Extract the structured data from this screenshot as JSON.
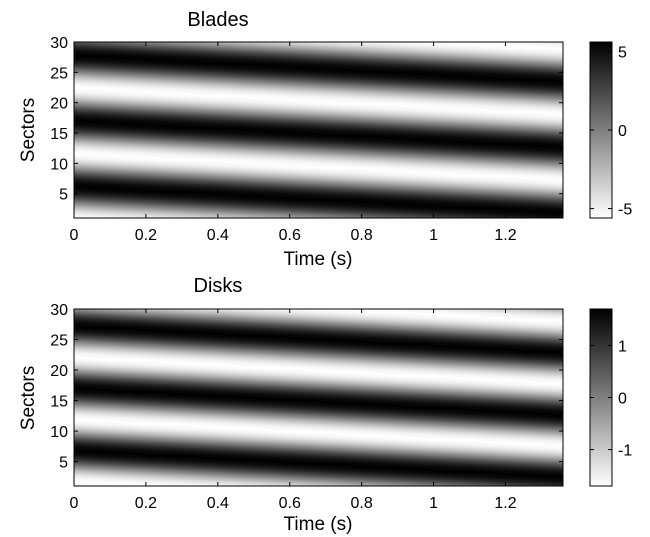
{
  "chart_data": [
    {
      "type": "heatmap",
      "title": "Blades",
      "xlabel": "Time (s)",
      "ylabel": "Sectors",
      "xlim": [
        0,
        1.36
      ],
      "ylim": [
        1,
        30
      ],
      "xticks": [
        0,
        0.2,
        0.4,
        0.6,
        0.8,
        1,
        1.2
      ],
      "xtick_labels": [
        "0",
        "0.2",
        "0.4",
        "0.6",
        "0.8",
        "1",
        "1.2"
      ],
      "yticks": [
        5,
        10,
        15,
        20,
        25,
        30
      ],
      "ytick_labels": [
        "5",
        "10",
        "15",
        "20",
        "25",
        "30"
      ],
      "colorbar": {
        "min": -5.6,
        "max": 5.6,
        "ticks": [
          -5,
          0,
          5
        ],
        "tick_labels": [
          "-5",
          "0",
          "5"
        ],
        "colormap": "gray-reversed"
      },
      "field": {
        "amplitude": 5.6,
        "wavelength_sectors": 10.8,
        "drift_sectors_per_second": -3.2,
        "phase_offset_sectors": 27.8
      },
      "grid": false
    },
    {
      "type": "heatmap",
      "title": "Disks",
      "xlabel": "Time (s)",
      "ylabel": "Sectors",
      "xlim": [
        0,
        1.36
      ],
      "ylim": [
        1,
        30
      ],
      "xticks": [
        0,
        0.2,
        0.4,
        0.6,
        0.8,
        1,
        1.2
      ],
      "xtick_labels": [
        "0",
        "0.2",
        "0.4",
        "0.6",
        "0.8",
        "1",
        "1.2"
      ],
      "yticks": [
        5,
        10,
        15,
        20,
        25,
        30
      ],
      "ytick_labels": [
        "5",
        "10",
        "15",
        "20",
        "25",
        "30"
      ],
      "colorbar": {
        "min": -1.7,
        "max": 1.7,
        "ticks": [
          -1,
          0,
          1
        ],
        "tick_labels": [
          "-1",
          "0",
          "1"
        ],
        "colormap": "gray-reversed"
      },
      "field": {
        "amplitude": 1.7,
        "wavelength_sectors": 10.2,
        "drift_sectors_per_second": -3.2,
        "phase_offset_sectors": 27.2
      },
      "grid": false
    }
  ]
}
